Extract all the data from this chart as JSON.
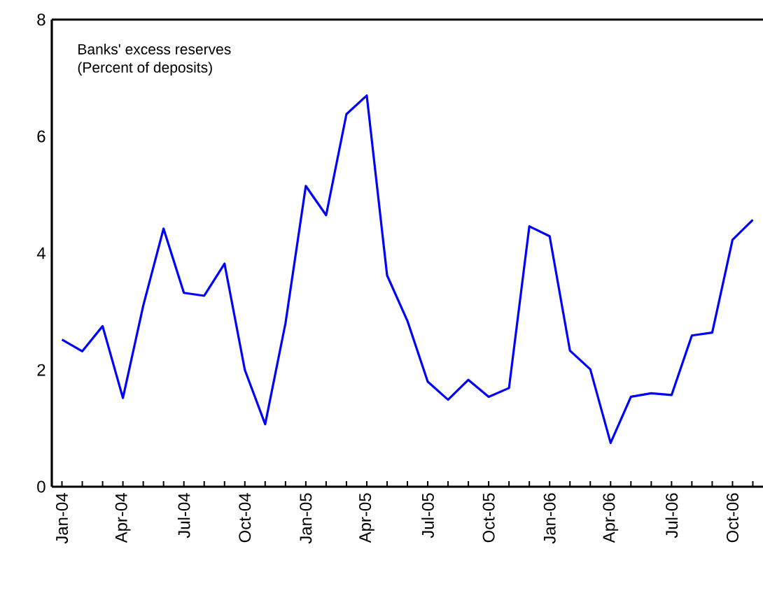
{
  "chart_data": {
    "type": "line",
    "title": "Banks' excess reserves",
    "subtitle": "(Percent of deposits)",
    "categories": [
      "Jan-04",
      null,
      null,
      "Apr-04",
      null,
      null,
      "Jul-04",
      null,
      null,
      "Oct-04",
      null,
      null,
      "Jan-05",
      null,
      null,
      "Apr-05",
      null,
      null,
      "Jul-05",
      null,
      null,
      "Oct-05",
      null,
      null,
      "Jan-06",
      null,
      null,
      "Apr-06",
      null,
      null,
      "Jul-06",
      null,
      null,
      "Oct-06",
      null
    ],
    "values": [
      2.52,
      2.32,
      2.75,
      1.52,
      3.1,
      4.42,
      3.32,
      3.27,
      3.82,
      2.0,
      1.07,
      2.8,
      5.15,
      4.65,
      6.38,
      6.7,
      3.62,
      2.84,
      1.8,
      1.49,
      1.83,
      1.54,
      1.69,
      4.46,
      4.29,
      2.33,
      2.01,
      0.75,
      1.54,
      1.6,
      1.57,
      2.59,
      2.64,
      4.23,
      4.57
    ],
    "color": "#0000ff",
    "ylim": [
      0,
      8
    ],
    "yticks": [
      0,
      2,
      4,
      6,
      8
    ]
  }
}
